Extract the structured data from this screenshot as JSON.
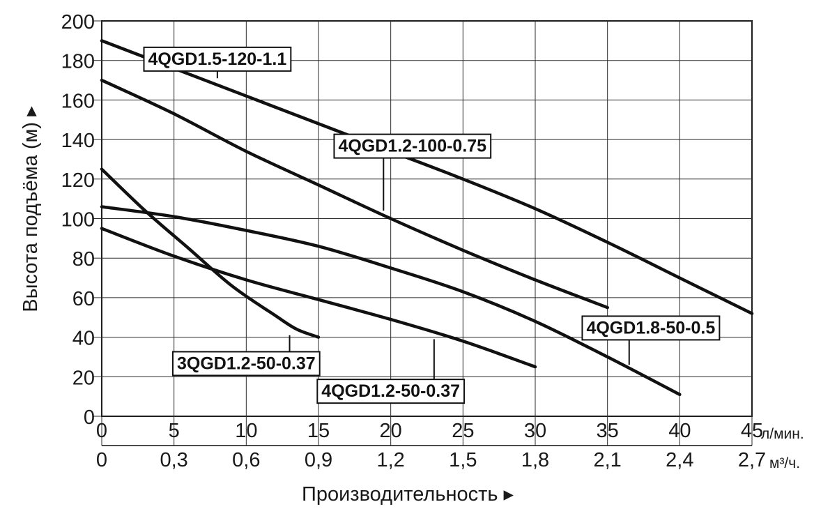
{
  "chart_data": {
    "type": "line",
    "title": "",
    "ylabel": "Высота подъёма (м) ▸",
    "xlabel": "Производительность ▸",
    "x_unit_primary": "л/мин.",
    "x_unit_secondary": "м³/ч.",
    "xlim": [
      0,
      45
    ],
    "ylim": [
      0,
      200
    ],
    "grid": true,
    "x_ticks": [
      {
        "x": 0,
        "primary": "0",
        "secondary": "0"
      },
      {
        "x": 5,
        "primary": "5",
        "secondary": "0,3"
      },
      {
        "x": 10,
        "primary": "10",
        "secondary": "0,6"
      },
      {
        "x": 15,
        "primary": "15",
        "secondary": "0,9"
      },
      {
        "x": 20,
        "primary": "20",
        "secondary": "1,2"
      },
      {
        "x": 25,
        "primary": "25",
        "secondary": "1,5"
      },
      {
        "x": 30,
        "primary": "30",
        "secondary": "1,8"
      },
      {
        "x": 35,
        "primary": "35",
        "secondary": "2,1"
      },
      {
        "x": 40,
        "primary": "40",
        "secondary": "2,4"
      },
      {
        "x": 45,
        "primary": "45",
        "secondary": "2,7"
      }
    ],
    "y_ticks": [
      "0",
      "20",
      "40",
      "60",
      "80",
      "100",
      "120",
      "140",
      "160",
      "180",
      "200"
    ],
    "series": [
      {
        "name": "4QGD1.5-120-1.1",
        "points": [
          [
            0,
            190
          ],
          [
            5,
            176
          ],
          [
            10,
            162
          ],
          [
            15,
            148
          ],
          [
            20,
            134
          ],
          [
            25,
            120
          ],
          [
            30,
            105
          ],
          [
            35,
            88
          ],
          [
            40,
            70
          ],
          [
            45,
            52
          ]
        ],
        "label_anchor": [
          8,
          181
        ],
        "label_point": [
          8,
          171
        ]
      },
      {
        "name": "4QGD1.2-100-0.75",
        "points": [
          [
            0,
            170
          ],
          [
            5,
            153
          ],
          [
            10,
            134
          ],
          [
            15,
            117
          ],
          [
            20,
            100
          ],
          [
            25,
            84
          ],
          [
            30,
            69
          ],
          [
            35,
            55
          ]
        ],
        "label_anchor": [
          21.5,
          137
        ],
        "label_point": [
          19.5,
          104
        ]
      },
      {
        "name": "4QGD1.8-50-0.5",
        "points": [
          [
            0,
            106
          ],
          [
            5,
            101
          ],
          [
            10,
            94
          ],
          [
            15,
            86
          ],
          [
            20,
            75
          ],
          [
            25,
            63
          ],
          [
            30,
            48
          ],
          [
            35,
            30
          ],
          [
            40,
            11
          ]
        ],
        "label_anchor": [
          38,
          45
        ],
        "label_point": [
          36.5,
          26
        ]
      },
      {
        "name": "3QGD1.2-50-0.37",
        "points": [
          [
            0,
            125
          ],
          [
            3,
            104
          ],
          [
            6,
            85
          ],
          [
            9,
            66
          ],
          [
            12,
            51
          ],
          [
            13.5,
            44
          ],
          [
            15,
            40
          ]
        ],
        "label_anchor": [
          10,
          27
        ],
        "label_point": [
          13,
          41
        ]
      },
      {
        "name": "4QGD1.2-50-0.37",
        "points": [
          [
            0,
            95
          ],
          [
            5,
            81
          ],
          [
            10,
            69
          ],
          [
            15,
            59
          ],
          [
            20,
            49
          ],
          [
            25,
            38
          ],
          [
            30,
            25
          ]
        ],
        "label_anchor": [
          20,
          13
        ],
        "label_point": [
          23,
          39
        ]
      }
    ]
  }
}
